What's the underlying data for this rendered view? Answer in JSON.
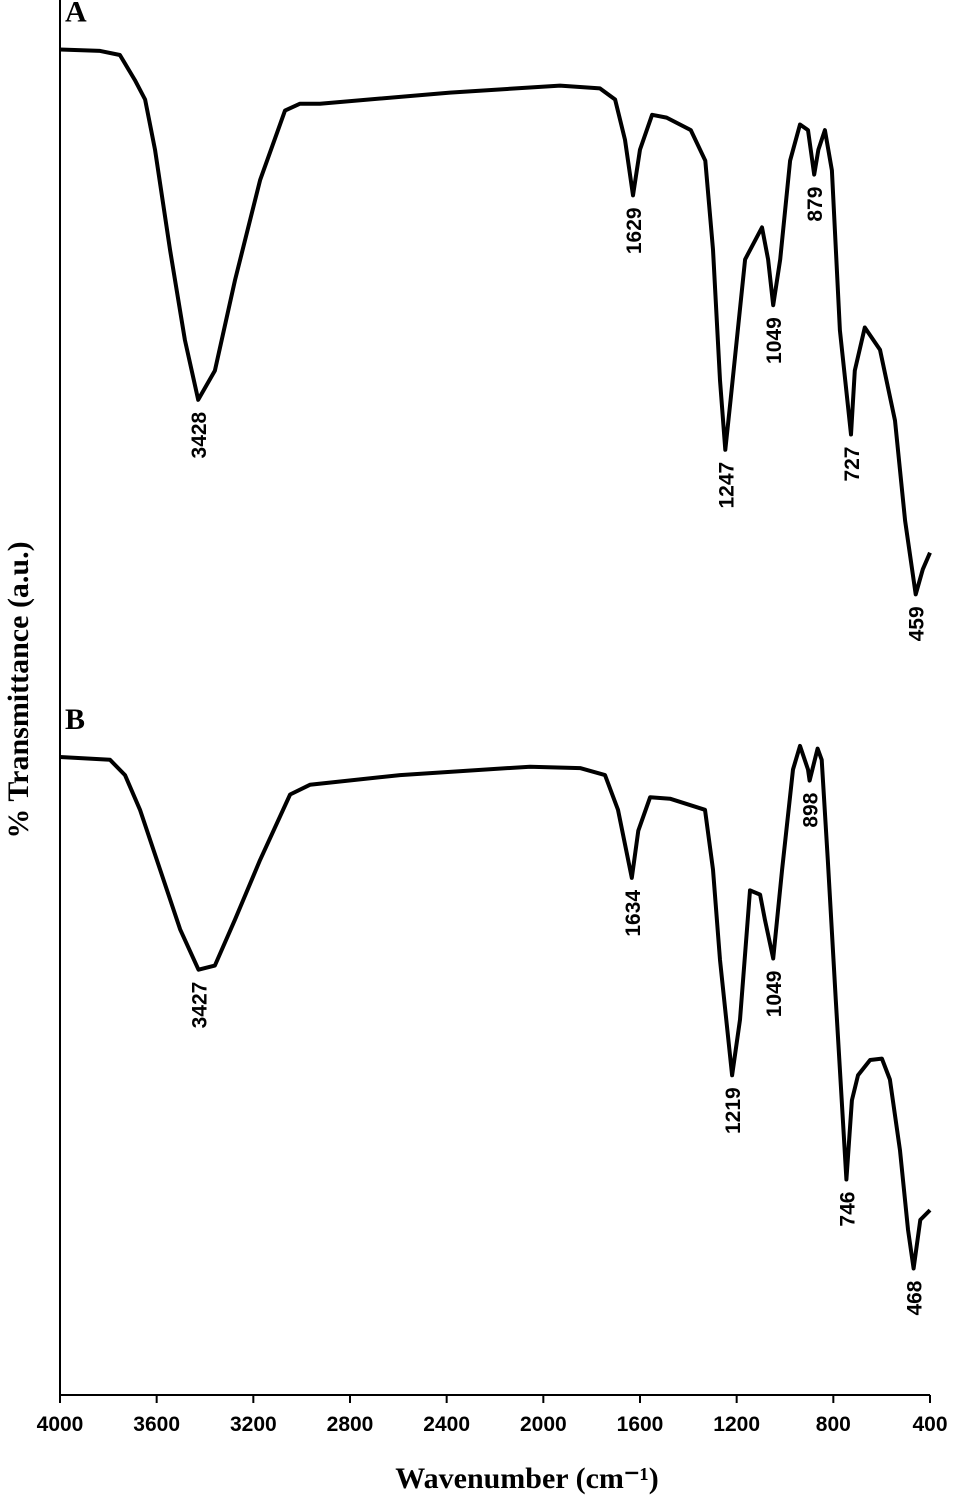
{
  "chart_data": {
    "type": "line",
    "xlabel": "Wavenumber (cm⁻¹)",
    "ylabel": "% Transmittance (a.u.)",
    "xlim": [
      4000,
      400
    ],
    "xticks": [
      4000,
      3600,
      3200,
      2800,
      2400,
      2000,
      1600,
      1200,
      800,
      400
    ],
    "ylim": [
      0,
      100
    ],
    "series": [
      {
        "name": "A",
        "color": "#000000",
        "x": [
          4000,
          3834,
          3752,
          3690,
          3648,
          3607,
          3545,
          3483,
          3428,
          3359,
          3276,
          3172,
          3069,
          3007,
          2924,
          2386,
          1931,
          1766,
          1703,
          1662,
          1629,
          1600,
          1550,
          1490,
          1390,
          1330,
          1298,
          1269,
          1247,
          1225,
          1165,
          1095,
          1070,
          1049,
          1020,
          979,
          938,
          905,
          879,
          862,
          835,
          806,
          773,
          727,
          711,
          670,
          607,
          545,
          503,
          459,
          430,
          400
        ],
        "values": [
          96.8,
          96.7,
          96.4,
          94.6,
          93.2,
          89.6,
          82.4,
          75.9,
          71.6,
          73.7,
          80.2,
          87.4,
          92.4,
          92.9,
          92.9,
          93.7,
          94.2,
          94.0,
          93.2,
          90.3,
          86.3,
          89.6,
          92.1,
          91.9,
          91.0,
          88.8,
          82.4,
          73.0,
          68.0,
          71.6,
          81.7,
          84.0,
          81.7,
          78.4,
          81.7,
          88.8,
          91.4,
          91.0,
          87.8,
          89.6,
          91.0,
          88.1,
          76.6,
          69.1,
          73.7,
          76.8,
          75.2,
          70.1,
          62.9,
          57.6,
          59.4,
          60.6
        ],
        "peaks": [
          3428,
          1629,
          1247,
          1049,
          879,
          727,
          459
        ]
      },
      {
        "name": "B",
        "color": "#000000",
        "x": [
          4000,
          3793,
          3731,
          3669,
          3586,
          3503,
          3427,
          3359,
          3276,
          3172,
          3048,
          2966,
          2593,
          2055,
          1848,
          1745,
          1691,
          1634,
          1607,
          1558,
          1476,
          1331,
          1298,
          1269,
          1219,
          1186,
          1145,
          1103,
          1083,
          1049,
          1012,
          967,
          938,
          905,
          898,
          865,
          848,
          823,
          790,
          746,
          723,
          698,
          648,
          599,
          566,
          524,
          491,
          468,
          440,
          400
        ],
        "values": [
          45.9,
          45.7,
          44.6,
          42.1,
          37.8,
          33.5,
          30.6,
          30.9,
          34.2,
          38.5,
          43.2,
          43.9,
          44.6,
          45.2,
          45.1,
          44.6,
          42.1,
          37.2,
          40.6,
          43.0,
          42.9,
          42.1,
          37.8,
          31.3,
          23.0,
          27.0,
          36.3,
          36.0,
          34.2,
          31.4,
          37.8,
          45.0,
          46.7,
          45.0,
          44.2,
          46.5,
          45.7,
          38.5,
          28.4,
          15.5,
          21.2,
          23.0,
          24.1,
          24.2,
          22.7,
          17.6,
          11.9,
          9.1,
          12.6,
          13.3
        ],
        "peaks": [
          3427,
          1634,
          1219,
          1049,
          898,
          746,
          468
        ]
      }
    ]
  }
}
